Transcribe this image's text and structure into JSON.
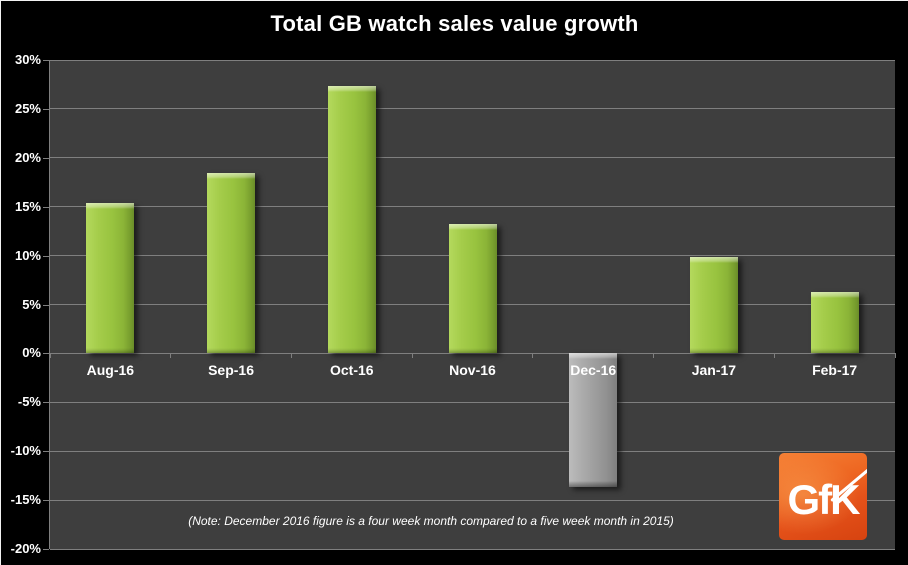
{
  "chart_data": {
    "type": "bar",
    "title": "Total GB watch sales value growth",
    "categories": [
      "Aug-16",
      "Sep-16",
      "Oct-16",
      "Nov-16",
      "Dec-16",
      "Jan-17",
      "Feb-17"
    ],
    "values": [
      15.4,
      18.4,
      27.3,
      13.2,
      -13.7,
      9.9,
      6.3
    ],
    "unit": "%",
    "ylim": [
      -20,
      30
    ],
    "ytick_step": 5,
    "ytick_labels": [
      "30%",
      "25%",
      "20%",
      "15%",
      "10%",
      "5%",
      "0%",
      "-5%",
      "-10%",
      "-15%",
      "-20%"
    ],
    "grid": true,
    "legend": false,
    "note": "(Note: December 2016 figure is a four week month compared to a five week month in 2015)",
    "negative_categories": [
      "Dec-16"
    ]
  },
  "logo": {
    "text": "GfK"
  },
  "colors": {
    "positive_bar": "#98c33f",
    "negative_bar": "#9d9d9d",
    "background": "#000000",
    "plot_background": "#3e3e3e",
    "gridline": "#7f7f7f",
    "text": "#ffffff",
    "logo_orange": "#e5521a"
  }
}
